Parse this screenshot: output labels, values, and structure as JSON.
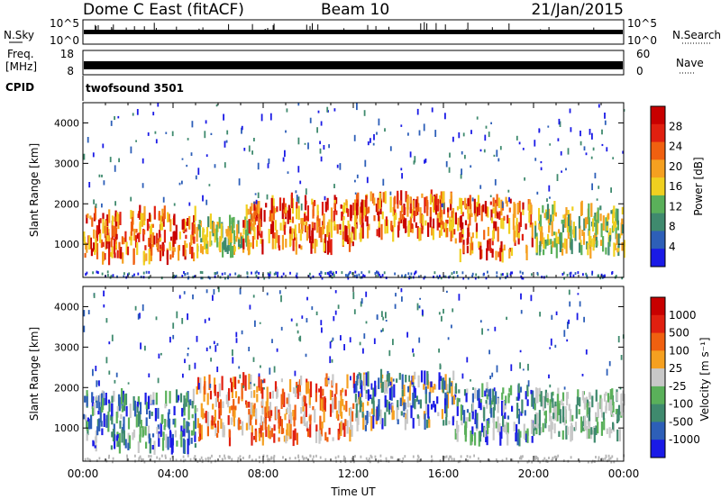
{
  "header": {
    "station": "Dome C East (fitACF)",
    "beam": "Beam 10",
    "date": "21/Jan/2015"
  },
  "noise_panel": {
    "left_label": "N.Sky",
    "right_label": "N.Search",
    "left_ticks": [
      "10^5",
      "10^0"
    ],
    "right_ticks": [
      "10^5",
      "10^0"
    ]
  },
  "freq_panel": {
    "left_label_1": "Freq.",
    "left_label_2": "[MHz]",
    "right_label": "Nave",
    "left_ticks": [
      "18",
      "8"
    ],
    "right_ticks": [
      "60",
      "0"
    ]
  },
  "cpid": {
    "label": "CPID",
    "value": "twofsound 3501"
  },
  "colors": {
    "power_scale": [
      "#1a1ae6",
      "#2d5fb8",
      "#3f8a6e",
      "#5ab05a",
      "#f0d020",
      "#f5a020",
      "#f06010",
      "#e02010",
      "#c80000"
    ],
    "velocity_scale": [
      "#1a1ae6",
      "#2d5fb8",
      "#3f8a6e",
      "#5ab05a",
      "#c8c8c8",
      "#f5a020",
      "#f06010",
      "#e02010",
      "#c80000"
    ],
    "ground_scatter": "#b4b4b4"
  },
  "chart_data": [
    {
      "type": "heatmap",
      "title": "",
      "xlabel": "",
      "ylabel": "Slant Range [km]",
      "xlim": [
        "00:00",
        "24:00"
      ],
      "ylim": [
        180,
        4500
      ],
      "yticks": [
        "1000",
        "2000",
        "3000",
        "4000"
      ],
      "colorbar": {
        "label": "Power [dB]",
        "range": [
          0,
          32
        ],
        "ticks": [
          "4",
          "8",
          "12",
          "16",
          "20",
          "24",
          "28"
        ]
      },
      "echo_regions": [
        {
          "start_h": 0.0,
          "end_h": 5.0,
          "range_km": [
            650,
            1800
          ],
          "level": "high"
        },
        {
          "start_h": 5.0,
          "end_h": 7.5,
          "range_km": [
            800,
            1600
          ],
          "level": "medium"
        },
        {
          "start_h": 7.0,
          "end_h": 12.0,
          "range_km": [
            900,
            2100
          ],
          "level": "high"
        },
        {
          "start_h": 12.0,
          "end_h": 16.5,
          "range_km": [
            1200,
            2200
          ],
          "level": "high"
        },
        {
          "start_h": 16.5,
          "end_h": 20.0,
          "range_km": [
            700,
            2100
          ],
          "level": "high"
        },
        {
          "start_h": 20.0,
          "end_h": 24.0,
          "range_km": [
            800,
            1900
          ],
          "level": "medium"
        }
      ]
    },
    {
      "type": "heatmap",
      "title": "",
      "xlabel": "Time UT",
      "ylabel": "Slant Range [km]",
      "xlim": [
        "00:00",
        "24:00"
      ],
      "ylim": [
        180,
        4500
      ],
      "xticks": [
        "00:00",
        "04:00",
        "08:00",
        "12:00",
        "16:00",
        "20:00",
        "00:00"
      ],
      "yticks": [
        "1000",
        "2000",
        "3000",
        "4000"
      ],
      "colorbar": {
        "label": "Velocity [m s⁻¹]",
        "ticks": [
          "1000",
          "500",
          "100",
          "25",
          "-25",
          "-100",
          "-500",
          "-1000"
        ]
      },
      "echo_regions": [
        {
          "start_h": 0.0,
          "end_h": 5.0,
          "range_km": [
            500,
            1800
          ],
          "level": "toward"
        },
        {
          "start_h": 5.0,
          "end_h": 12.0,
          "range_km": [
            700,
            2200
          ],
          "level": "away"
        },
        {
          "start_h": 12.0,
          "end_h": 16.5,
          "range_km": [
            1100,
            2300
          ],
          "level": "mixed"
        },
        {
          "start_h": 16.5,
          "end_h": 20.0,
          "range_km": [
            700,
            2000
          ],
          "level": "toward"
        },
        {
          "start_h": 20.0,
          "end_h": 24.0,
          "range_km": [
            800,
            1900
          ],
          "level": "ground"
        }
      ]
    }
  ]
}
